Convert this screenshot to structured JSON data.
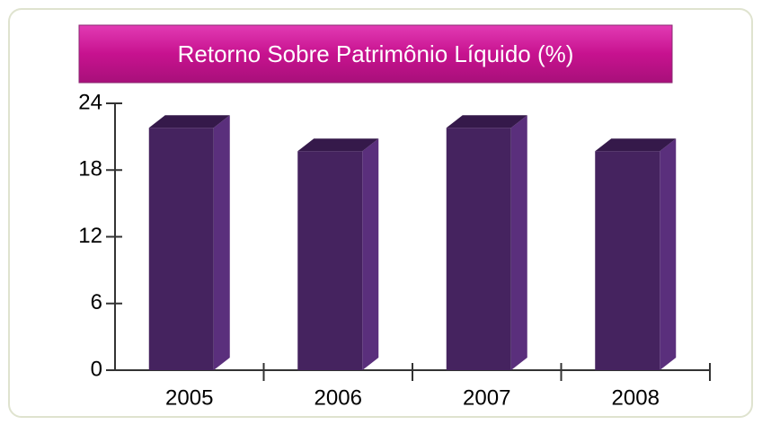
{
  "chart_data": {
    "type": "bar",
    "title": "Retorno Sobre Patrimônio Líquido (%)",
    "categories": [
      "2005",
      "2006",
      "2007",
      "2008"
    ],
    "values": [
      21.8,
      19.7,
      21.8,
      19.7
    ],
    "color": "#45235f",
    "ylim": [
      0,
      24
    ],
    "yticks": [
      0,
      6,
      12,
      18,
      24
    ],
    "grid": false
  }
}
